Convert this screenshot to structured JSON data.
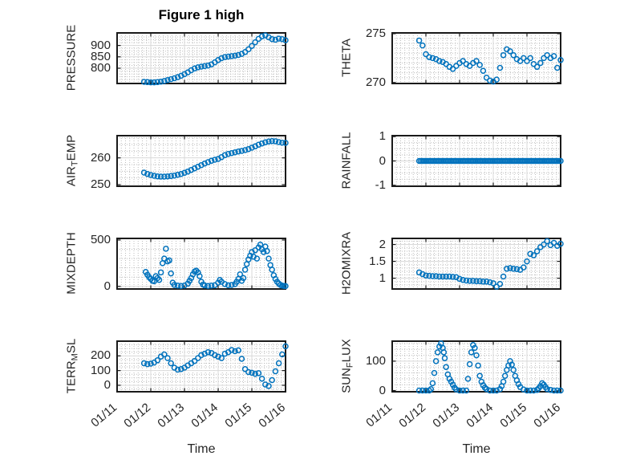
{
  "figure": {
    "title": "Figure 1 high",
    "xlabel": "Time",
    "marker_color": "#0072BD",
    "axis_color": "#1a1a1a",
    "text_color": "#262626",
    "grid_color": "#d9d9d9",
    "minor_grid_color": "#bdbdbd",
    "xtick_values": [
      0,
      1,
      2,
      3,
      4,
      5
    ],
    "xticklabels": [
      "01/11",
      "01/12",
      "01/13",
      "01/14",
      "01/15",
      "01/16"
    ]
  },
  "chart_data": [
    {
      "type": "scatter",
      "name": "PRESSURE",
      "row": 0,
      "col": 0,
      "ylabel_pre": "PRESSURE",
      "ylabel_sub": "",
      "ylabel_post": "",
      "xlim": [
        0,
        5
      ],
      "xminor": 0.125,
      "ylim": [
        733,
        955
      ],
      "yticks": [
        800,
        850,
        900
      ],
      "yminor": 12.5,
      "x": [
        0.8,
        0.9,
        1,
        1.1,
        1.2,
        1.3,
        1.4,
        1.5,
        1.6,
        1.7,
        1.8,
        1.9,
        2,
        2.1,
        2.2,
        2.3,
        2.4,
        2.5,
        2.6,
        2.7,
        2.8,
        2.9,
        3,
        3.1,
        3.2,
        3.3,
        3.4,
        3.5,
        3.6,
        3.7,
        3.8,
        3.9,
        4,
        4.1,
        4.2,
        4.3,
        4.4,
        4.5,
        4.6,
        4.7,
        4.8,
        4.9,
        5
      ],
      "y": [
        740,
        739,
        738,
        738,
        739,
        741,
        744,
        748,
        752,
        756,
        761,
        767,
        774,
        782,
        791,
        799,
        804,
        807,
        809,
        812,
        817,
        826,
        836,
        844,
        849,
        851,
        853,
        855,
        858,
        863,
        871,
        883,
        898,
        914,
        929,
        940,
        944,
        936,
        928,
        925,
        930,
        928,
        923
      ]
    },
    {
      "type": "scatter",
      "name": "THETA",
      "row": 0,
      "col": 1,
      "ylabel_pre": "THETA",
      "ylabel_sub": "",
      "ylabel_post": "",
      "xlim": [
        0,
        5
      ],
      "xminor": 0.125,
      "ylim": [
        269.9,
        275.08
      ],
      "yticks": [
        270,
        275
      ],
      "yminor": 0.5,
      "x": [
        0.8,
        0.9,
        1,
        1.1,
        1.2,
        1.3,
        1.4,
        1.5,
        1.6,
        1.7,
        1.8,
        1.9,
        2,
        2.1,
        2.2,
        2.3,
        2.4,
        2.5,
        2.6,
        2.7,
        2.8,
        2.9,
        3,
        3.1,
        3.2,
        3.3,
        3.4,
        3.5,
        3.6,
        3.7,
        3.8,
        3.9,
        4,
        4.1,
        4.2,
        4.3,
        4.4,
        4.5,
        4.6,
        4.7,
        4.8,
        4.9,
        5
      ],
      "y": [
        274.3,
        273.8,
        272.9,
        272.6,
        272.5,
        272.4,
        272.2,
        272.1,
        271.9,
        271.6,
        271.4,
        271.7,
        272,
        272.2,
        271.9,
        271.7,
        272,
        272.2,
        271.8,
        271.2,
        270.5,
        270.2,
        270.1,
        270.3,
        271.5,
        272.8,
        273.4,
        273.2,
        272.8,
        272.4,
        272.2,
        272.5,
        272.2,
        272.5,
        271.9,
        271.6,
        272,
        272.5,
        272.8,
        272.5,
        272.7,
        271.5,
        272.3
      ]
    },
    {
      "type": "scatter",
      "name": "AIR_TEMP",
      "row": 1,
      "col": 0,
      "ylabel_pre": "AIR",
      "ylabel_sub": "T",
      "ylabel_post": "EMP",
      "xlim": [
        0,
        5
      ],
      "xminor": 0.125,
      "ylim": [
        249.4,
        268.3
      ],
      "yticks": [
        250,
        260
      ],
      "yminor": 2.5,
      "x": [
        0.8,
        0.9,
        1,
        1.1,
        1.2,
        1.3,
        1.4,
        1.5,
        1.6,
        1.7,
        1.8,
        1.9,
        2,
        2.1,
        2.2,
        2.3,
        2.4,
        2.5,
        2.6,
        2.7,
        2.8,
        2.9,
        3,
        3.1,
        3.2,
        3.3,
        3.4,
        3.5,
        3.6,
        3.7,
        3.8,
        3.9,
        4,
        4.1,
        4.2,
        4.3,
        4.4,
        4.5,
        4.6,
        4.7,
        4.8,
        4.9,
        5
      ],
      "y": [
        254.5,
        254,
        253.6,
        253.3,
        253.1,
        253,
        253,
        253.1,
        253.2,
        253.4,
        253.7,
        254,
        254.4,
        254.9,
        255.5,
        256.1,
        256.7,
        257.3,
        257.9,
        258.4,
        258.9,
        259.3,
        259.6,
        260.3,
        261,
        261.5,
        261.8,
        262.1,
        262.4,
        262.6,
        262.9,
        263.3,
        263.8,
        264.3,
        264.9,
        265.4,
        265.8,
        266.1,
        266.3,
        266.2,
        265.9,
        265.7,
        265.6
      ]
    },
    {
      "type": "scatter",
      "name": "RAINFALL",
      "row": 1,
      "col": 1,
      "ylabel_pre": "RAINFALL",
      "ylabel_sub": "",
      "ylabel_post": "",
      "xlim": [
        0,
        5
      ],
      "xminor": 0.125,
      "ylim": [
        -1.04,
        1.04
      ],
      "yticks": [
        -1,
        0,
        1
      ],
      "yminor": 0.25,
      "x": [
        0.8,
        0.85,
        0.9,
        0.95,
        1,
        1.05,
        1.1,
        1.15,
        1.2,
        1.25,
        1.3,
        1.35,
        1.4,
        1.45,
        1.5,
        1.55,
        1.6,
        1.65,
        1.7,
        1.75,
        1.8,
        1.85,
        1.9,
        1.95,
        2,
        2.05,
        2.1,
        2.15,
        2.2,
        2.25,
        2.3,
        2.35,
        2.4,
        2.45,
        2.5,
        2.55,
        2.6,
        2.65,
        2.7,
        2.75,
        2.8,
        2.85,
        2.9,
        2.95,
        3,
        3.05,
        3.1,
        3.15,
        3.2,
        3.25,
        3.3,
        3.35,
        3.4,
        3.45,
        3.5,
        3.55,
        3.6,
        3.65,
        3.7,
        3.75,
        3.8,
        3.85,
        3.9,
        3.95,
        4,
        4.05,
        4.1,
        4.15,
        4.2,
        4.25,
        4.3,
        4.35,
        4.4,
        4.45,
        4.5,
        4.55,
        4.6,
        4.65,
        4.7,
        4.75,
        4.8,
        4.85,
        4.9,
        4.95,
        5
      ],
      "y": [
        0,
        0,
        0,
        0,
        0,
        0,
        0,
        0,
        0,
        0,
        0,
        0,
        0,
        0,
        0,
        0,
        0,
        0,
        0,
        0,
        0,
        0,
        0,
        0,
        0,
        0,
        0,
        0,
        0,
        0,
        0,
        0,
        0,
        0,
        0,
        0,
        0,
        0,
        0,
        0,
        0,
        0,
        0,
        0,
        0,
        0,
        0,
        0,
        0,
        0,
        0,
        0,
        0,
        0,
        0,
        0,
        0,
        0,
        0,
        0,
        0,
        0,
        0,
        0,
        0,
        0,
        0,
        0,
        0,
        0,
        0,
        0,
        0,
        0,
        0,
        0,
        0,
        0,
        0,
        0,
        0,
        0,
        0,
        0,
        0
      ]
    },
    {
      "type": "scatter",
      "name": "MIXDEPTH",
      "row": 2,
      "col": 0,
      "ylabel_pre": "MIXDEPTH",
      "ylabel_sub": "",
      "ylabel_post": "",
      "xlim": [
        0,
        5
      ],
      "xminor": 0.125,
      "ylim": [
        -28,
        517
      ],
      "yticks": [
        0,
        500
      ],
      "yminor": 100,
      "x": [
        0.85,
        0.9,
        0.95,
        1,
        1.05,
        1.1,
        1.15,
        1.2,
        1.25,
        1.3,
        1.35,
        1.4,
        1.45,
        1.5,
        1.55,
        1.6,
        1.65,
        1.7,
        1.8,
        1.9,
        2,
        2.1,
        2.15,
        2.2,
        2.25,
        2.3,
        2.35,
        2.4,
        2.45,
        2.5,
        2.55,
        2.6,
        2.7,
        2.8,
        2.9,
        3,
        3.05,
        3.1,
        3.2,
        3.3,
        3.4,
        3.5,
        3.55,
        3.6,
        3.65,
        3.7,
        3.75,
        3.8,
        3.85,
        3.9,
        3.95,
        4,
        4.05,
        4.1,
        4.15,
        4.2,
        4.25,
        4.3,
        4.35,
        4.4,
        4.45,
        4.5,
        4.55,
        4.6,
        4.65,
        4.7,
        4.75,
        4.8,
        4.85,
        4.9,
        4.95,
        5
      ],
      "y": [
        155,
        125,
        100,
        80,
        60,
        55,
        110,
        90,
        70,
        150,
        250,
        300,
        405,
        270,
        280,
        140,
        40,
        15,
        8,
        5,
        10,
        30,
        60,
        90,
        130,
        160,
        170,
        150,
        110,
        50,
        20,
        10,
        5,
        8,
        12,
        40,
        70,
        50,
        25,
        12,
        15,
        25,
        50,
        80,
        130,
        60,
        90,
        180,
        240,
        290,
        330,
        370,
        320,
        390,
        300,
        420,
        450,
        400,
        370,
        430,
        380,
        300,
        230,
        180,
        120,
        80,
        50,
        30,
        15,
        8,
        5,
        3
      ]
    },
    {
      "type": "scatter",
      "name": "H2OMIXRA",
      "row": 2,
      "col": 1,
      "ylabel_pre": "H2OMIXRA",
      "ylabel_sub": "",
      "ylabel_post": "",
      "xlim": [
        0,
        5
      ],
      "xminor": 0.125,
      "ylim": [
        0.68,
        2.18
      ],
      "yticks": [
        1,
        1.5,
        2
      ],
      "yminor": 0.1,
      "x": [
        0.8,
        0.9,
        1,
        1.1,
        1.2,
        1.3,
        1.4,
        1.5,
        1.6,
        1.7,
        1.8,
        1.9,
        2,
        2.1,
        2.2,
        2.3,
        2.4,
        2.5,
        2.6,
        2.7,
        2.8,
        2.9,
        3,
        3.1,
        3.2,
        3.3,
        3.4,
        3.5,
        3.6,
        3.7,
        3.8,
        3.9,
        4,
        4.1,
        4.2,
        4.3,
        4.4,
        4.5,
        4.6,
        4.7,
        4.8,
        4.9,
        5
      ],
      "y": [
        1.17,
        1.12,
        1.08,
        1.07,
        1.06,
        1.06,
        1.05,
        1.05,
        1.05,
        1.05,
        1.04,
        1.03,
        0.98,
        0.95,
        0.93,
        0.92,
        0.92,
        0.91,
        0.91,
        0.9,
        0.9,
        0.88,
        0.85,
        0.75,
        0.83,
        1.05,
        1.28,
        1.3,
        1.28,
        1.27,
        1.25,
        1.32,
        1.5,
        1.72,
        1.68,
        1.8,
        1.92,
        2,
        2.1,
        1.98,
        2.05,
        1.96,
        2.02
      ]
    },
    {
      "type": "scatter",
      "name": "TERR_MSL",
      "row": 3,
      "col": 0,
      "ylabel_pre": "TERR",
      "ylabel_sub": "M",
      "ylabel_post": "SL",
      "xlim": [
        0,
        5
      ],
      "xminor": 0.125,
      "ylim": [
        -44,
        300
      ],
      "yticks": [
        0,
        100,
        200
      ],
      "yminor": 25,
      "x": [
        0.8,
        0.9,
        1,
        1.1,
        1.2,
        1.3,
        1.4,
        1.5,
        1.6,
        1.7,
        1.8,
        1.9,
        2,
        2.1,
        2.2,
        2.3,
        2.4,
        2.5,
        2.6,
        2.7,
        2.8,
        2.9,
        3,
        3.1,
        3.2,
        3.3,
        3.4,
        3.5,
        3.6,
        3.7,
        3.8,
        3.9,
        4,
        4.1,
        4.2,
        4.3,
        4.4,
        4.5,
        4.6,
        4.7,
        4.8,
        4.9,
        5
      ],
      "y": [
        150,
        144,
        147,
        155,
        170,
        195,
        210,
        185,
        150,
        120,
        106,
        110,
        120,
        135,
        150,
        165,
        185,
        205,
        215,
        225,
        220,
        205,
        195,
        185,
        215,
        225,
        240,
        232,
        238,
        180,
        110,
        90,
        85,
        78,
        82,
        45,
        5,
        -5,
        35,
        95,
        150,
        210,
        265
      ]
    },
    {
      "type": "scatter",
      "name": "SUN_FLUX",
      "row": 3,
      "col": 1,
      "ylabel_pre": "SUN",
      "ylabel_sub": "F",
      "ylabel_post": "LUX",
      "xlim": [
        0,
        5
      ],
      "xminor": 0.125,
      "ylim": [
        -4,
        168
      ],
      "yticks": [
        0,
        100
      ],
      "yminor": 20,
      "x": [
        0.8,
        0.9,
        1,
        1.1,
        1.15,
        1.2,
        1.25,
        1.3,
        1.35,
        1.4,
        1.45,
        1.5,
        1.53,
        1.56,
        1.6,
        1.65,
        1.7,
        1.75,
        1.8,
        1.85,
        1.9,
        2,
        2.1,
        2.2,
        2.25,
        2.3,
        2.35,
        2.4,
        2.45,
        2.5,
        2.55,
        2.6,
        2.65,
        2.7,
        2.75,
        2.8,
        2.9,
        3,
        3.1,
        3.2,
        3.25,
        3.3,
        3.35,
        3.4,
        3.45,
        3.5,
        3.55,
        3.6,
        3.65,
        3.7,
        3.75,
        3.8,
        3.9,
        4,
        4.1,
        4.2,
        4.3,
        4.35,
        4.4,
        4.45,
        4.5,
        4.55,
        4.6,
        4.7,
        4.8,
        4.9,
        5
      ],
      "y": [
        0,
        0,
        0,
        0,
        5,
        25,
        60,
        100,
        130,
        150,
        160,
        145,
        130,
        110,
        80,
        55,
        40,
        30,
        20,
        10,
        4,
        0,
        0,
        0,
        40,
        90,
        130,
        155,
        145,
        120,
        85,
        50,
        30,
        18,
        10,
        5,
        0,
        0,
        0,
        5,
        15,
        30,
        50,
        70,
        85,
        100,
        88,
        70,
        50,
        35,
        22,
        12,
        4,
        0,
        0,
        0,
        2,
        8,
        15,
        25,
        20,
        12,
        5,
        2,
        0,
        0,
        0
      ]
    }
  ]
}
